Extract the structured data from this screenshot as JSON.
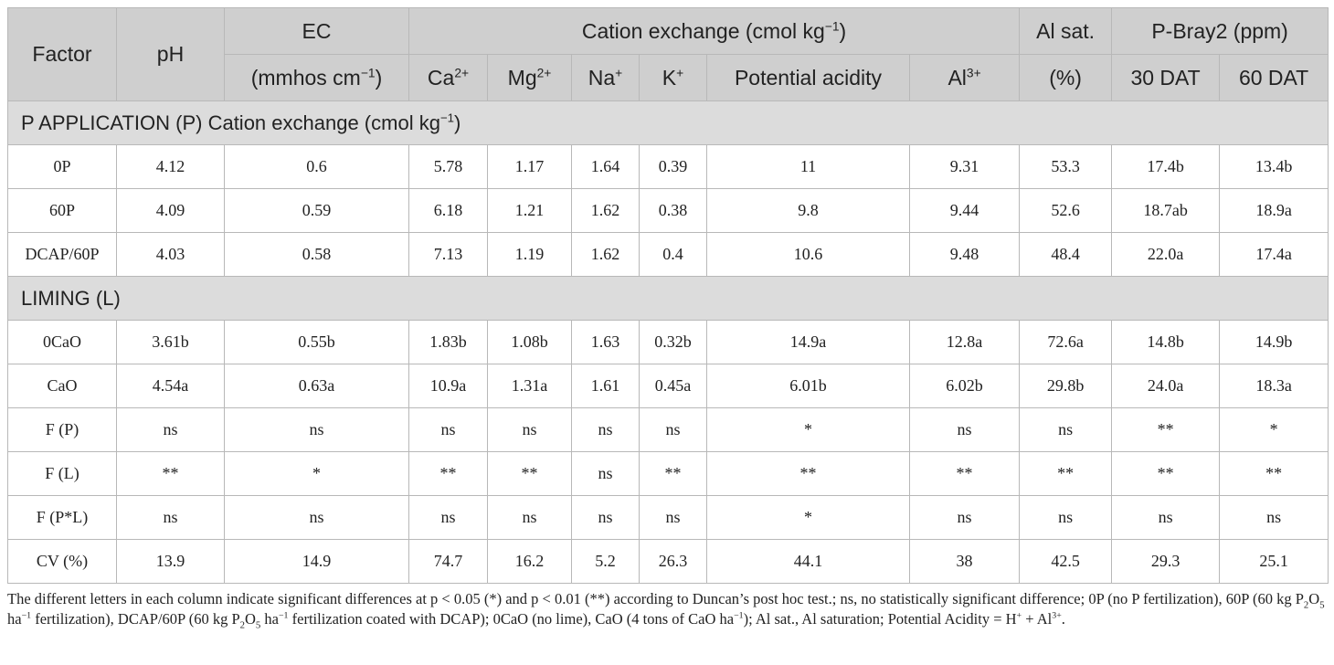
{
  "header": {
    "factor": "Factor",
    "ph": "pH",
    "ec": "EC",
    "ec_unit": "(mmhos cm",
    "cation_group": "Cation exchange (cmol kg",
    "al_sat": "Al sat.",
    "al_sat_unit": "(%)",
    "p_bray": "P-Bray2 (ppm)",
    "ca": "Ca",
    "mg": "Mg",
    "na": "Na",
    "k": "K",
    "potential_acidity": "Potential acidity",
    "al": "Al",
    "dat30": "30 DAT",
    "dat60": "60 DAT"
  },
  "sections": {
    "p_application": "P APPLICATION (P) Cation exchange (cmol kg",
    "liming": "LIMING (L)"
  },
  "rows_p": [
    [
      "0P",
      "4.12",
      "0.6",
      "5.78",
      "1.17",
      "1.64",
      "0.39",
      "11",
      "9.31",
      "53.3",
      "17.4b",
      "13.4b"
    ],
    [
      "60P",
      "4.09",
      "0.59",
      "6.18",
      "1.21",
      "1.62",
      "0.38",
      "9.8",
      "9.44",
      "52.6",
      "18.7ab",
      "18.9a"
    ],
    [
      "DCAP/60P",
      "4.03",
      "0.58",
      "7.13",
      "1.19",
      "1.62",
      "0.4",
      "10.6",
      "9.48",
      "48.4",
      "22.0a",
      "17.4a"
    ]
  ],
  "rows_l": [
    [
      "0CaO",
      "3.61b",
      "0.55b",
      "1.83b",
      "1.08b",
      "1.63",
      "0.32b",
      "14.9a",
      "12.8a",
      "72.6a",
      "14.8b",
      "14.9b"
    ],
    [
      "CaO",
      "4.54a",
      "0.63a",
      "10.9a",
      "1.31a",
      "1.61",
      "0.45a",
      "6.01b",
      "6.02b",
      "29.8b",
      "24.0a",
      "18.3a"
    ],
    [
      "F (P)",
      "ns",
      "ns",
      "ns",
      "ns",
      "ns",
      "ns",
      "*",
      "ns",
      "ns",
      "**",
      "*"
    ],
    [
      "F (L)",
      "**",
      "*",
      "**",
      "**",
      "ns",
      "**",
      "**",
      "**",
      "**",
      "**",
      "**"
    ],
    [
      "F (P*L)",
      "ns",
      "ns",
      "ns",
      "ns",
      "ns",
      "ns",
      "*",
      "ns",
      "ns",
      "ns",
      "ns"
    ],
    [
      "CV (%)",
      "13.9",
      "14.9",
      "74.7",
      "16.2",
      "5.2",
      "26.3",
      "44.1",
      "38",
      "42.5",
      "29.3",
      "25.1"
    ]
  ],
  "footnote": {
    "p1": "The different letters in each column indicate significant differences at p < 0.05 (*) and p < 0.01 (**) according to Duncan’s post hoc test.; ns, no statistically significant difference; 0P (no P fertilization), 60P (60 kg P",
    "p2": "O",
    "p3": " ha",
    "p4": " fertilization), DCAP/60P (60 kg P",
    "p5": "O",
    "p6": " ha",
    "p7": " fertilization coated with DCAP); 0CaO (no lime), CaO (4 tons of CaO ha",
    "p8": "); Al sat., Al saturation; Potential Acidity = H",
    "p9": " + Al",
    "p10": "."
  }
}
